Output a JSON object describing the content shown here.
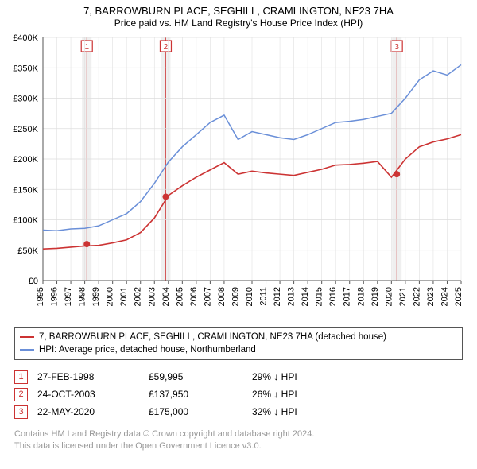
{
  "title_line1": "7, BARROWBURN PLACE, SEGHILL, CRAMLINGTON, NE23 7HA",
  "title_line2": "Price paid vs. HM Land Registry's House Price Index (HPI)",
  "title_fontsize": 13,
  "chart": {
    "type": "line",
    "background_color": "#ffffff",
    "grid_color": "#dddddd",
    "axis_color": "#555555",
    "tick_fontsize": 11,
    "x_years": [
      1995,
      1996,
      1997,
      1998,
      1999,
      2000,
      2001,
      2002,
      2003,
      2004,
      2005,
      2006,
      2007,
      2008,
      2009,
      2010,
      2011,
      2012,
      2013,
      2014,
      2015,
      2016,
      2017,
      2018,
      2019,
      2020,
      2021,
      2022,
      2023,
      2024,
      2025
    ],
    "xlim": [
      1995,
      2025
    ],
    "ylim": [
      0,
      400000
    ],
    "ytick_step": 50000,
    "ytick_labels": [
      "£0",
      "£50K",
      "£100K",
      "£150K",
      "£200K",
      "£250K",
      "£300K",
      "£350K",
      "£400K"
    ],
    "marker_band_color": "#efefef",
    "vline_color": "#e0e0e0",
    "marker_vline_color": "#cc3333",
    "series": [
      {
        "name": "price_paid",
        "label": "7, BARROWBURN PLACE, SEGHILL, CRAMLINGTON, NE23 7HA (detached house)",
        "color": "#cc3333",
        "line_width": 1.6,
        "marker_color": "#cc3333",
        "marker_radius": 4,
        "values": [
          52000,
          53000,
          55000,
          57000,
          58000,
          62000,
          67000,
          79000,
          103000,
          140000,
          156000,
          170000,
          182000,
          194000,
          175000,
          180000,
          177000,
          175000,
          173000,
          178000,
          183000,
          190000,
          191000,
          193000,
          196000,
          170000,
          200000,
          220000,
          228000,
          233000,
          240000
        ]
      },
      {
        "name": "hpi",
        "label": "HPI: Average price, detached house, Northumberland",
        "color": "#6a8fd8",
        "line_width": 1.5,
        "values": [
          83000,
          82000,
          85000,
          86000,
          90000,
          100000,
          110000,
          130000,
          160000,
          195000,
          220000,
          240000,
          260000,
          272000,
          232000,
          245000,
          240000,
          235000,
          232000,
          240000,
          250000,
          260000,
          262000,
          265000,
          270000,
          275000,
          300000,
          330000,
          345000,
          338000,
          355000
        ]
      }
    ],
    "markers": [
      {
        "num": "1",
        "year": 1998.15,
        "value": 59995
      },
      {
        "num": "2",
        "year": 2003.81,
        "value": 137950
      },
      {
        "num": "3",
        "year": 2020.39,
        "value": 175000
      }
    ]
  },
  "legend": {
    "items": [
      {
        "color": "#cc3333",
        "text": "7, BARROWBURN PLACE, SEGHILL, CRAMLINGTON, NE23 7HA (detached house)"
      },
      {
        "color": "#6a8fd8",
        "text": "HPI: Average price, detached house, Northumberland"
      }
    ]
  },
  "sales": [
    {
      "num": "1",
      "date": "27-FEB-1998",
      "price": "£59,995",
      "delta": "29% ↓ HPI"
    },
    {
      "num": "2",
      "date": "24-OCT-2003",
      "price": "£137,950",
      "delta": "26% ↓ HPI"
    },
    {
      "num": "3",
      "date": "22-MAY-2020",
      "price": "£175,000",
      "delta": "32% ↓ HPI"
    }
  ],
  "sale_num_border_color": "#cc3333",
  "sale_num_text_color": "#cc3333",
  "footer_line1": "Contains HM Land Registry data © Crown copyright and database right 2024.",
  "footer_line2": "This data is licensed under the Open Government Licence v3.0.",
  "footer_color": "#999999"
}
